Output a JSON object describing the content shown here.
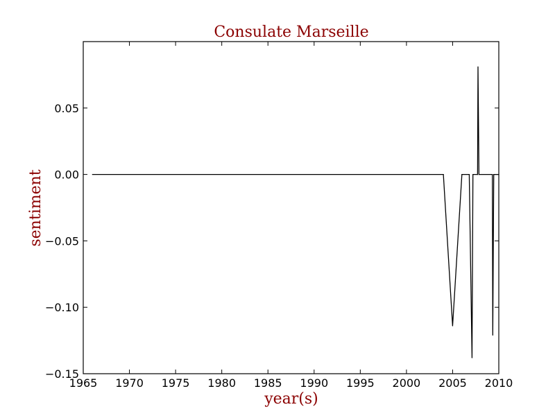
{
  "chart_data": {
    "type": "line",
    "title": "Consulate Marseille",
    "xlabel": "year(s)",
    "ylabel": "sentiment",
    "xlim": [
      1965,
      2010
    ],
    "ylim": [
      -0.15,
      0.1
    ],
    "xticks": [
      "1965",
      "1970",
      "1975",
      "1980",
      "1985",
      "1990",
      "1995",
      "2000",
      "2005",
      "2010"
    ],
    "yticks": [
      "−0.15",
      "−0.10",
      "−0.05",
      "0.00",
      "0.05"
    ],
    "xtick_values": [
      1965,
      1970,
      1975,
      1980,
      1985,
      1990,
      1995,
      2000,
      2005,
      2010
    ],
    "ytick_values": [
      -0.15,
      -0.1,
      -0.05,
      0.0,
      0.05
    ],
    "grid": false,
    "line_color": "#000000",
    "text_color": "#8b0000",
    "series": [
      {
        "x": [
          1966,
          2004,
          2005,
          2006,
          2006.8,
          2007.1,
          2007.2,
          2007.7,
          2007.75,
          2007.85,
          2009.3,
          2009.35,
          2009.45,
          2010
        ],
        "y": [
          0.0,
          0.0,
          -0.114,
          0.0,
          0.0,
          -0.138,
          0.0,
          0.0,
          0.081,
          0.0,
          0.0,
          -0.121,
          0.0,
          0.0
        ]
      }
    ]
  }
}
